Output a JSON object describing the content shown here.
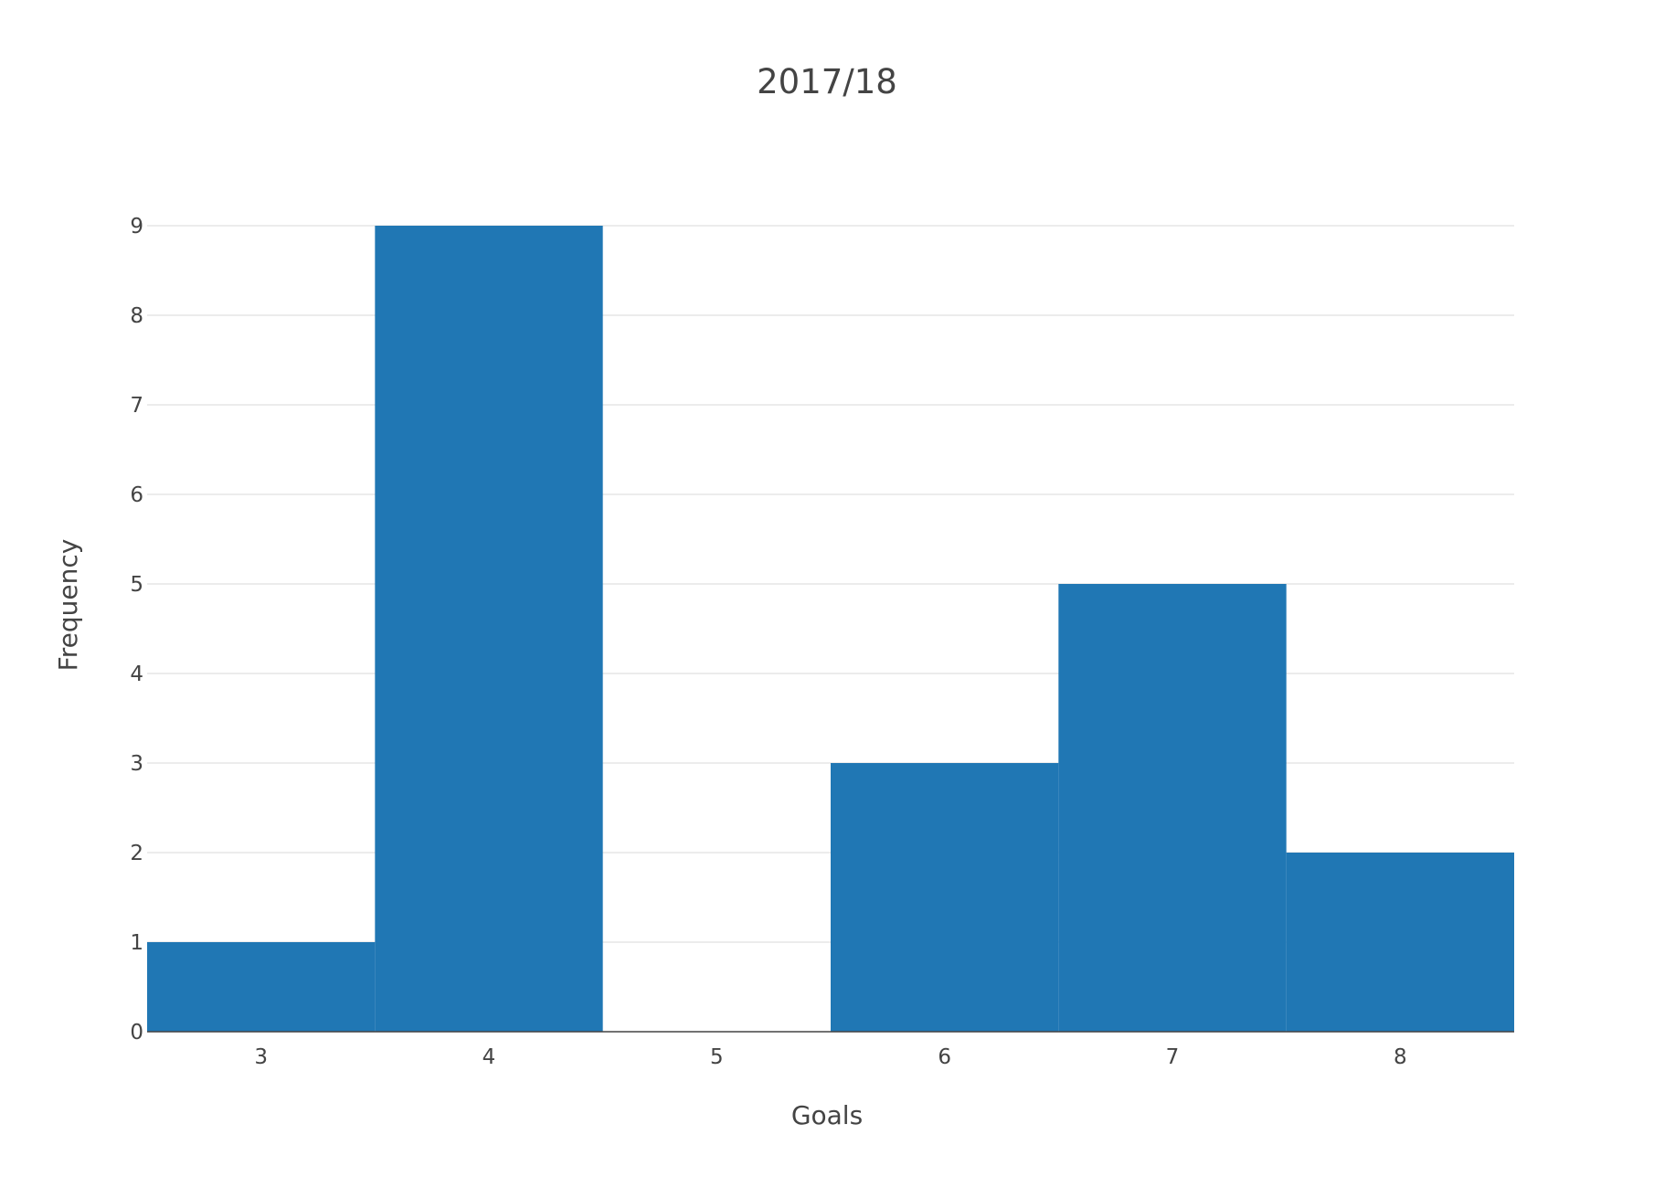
{
  "chart_data": {
    "type": "bar",
    "title": "2017/18",
    "xlabel": "Goals",
    "ylabel": "Frequency",
    "categories": [
      "3",
      "4",
      "5",
      "6",
      "7",
      "8"
    ],
    "values": [
      1,
      9,
      0,
      3,
      5,
      2
    ],
    "x_tick_labels": [
      "3",
      "4",
      "5",
      "6",
      "7",
      "8"
    ],
    "y_tick_labels": [
      "0",
      "1",
      "2",
      "3",
      "4",
      "5",
      "6",
      "7",
      "8",
      "9"
    ],
    "ylim": [
      0,
      9
    ],
    "grid": true,
    "legend": "none",
    "bar_color": "#2077b4",
    "grid_color": "#e6e6e6",
    "axis_line_color": "#444444"
  }
}
